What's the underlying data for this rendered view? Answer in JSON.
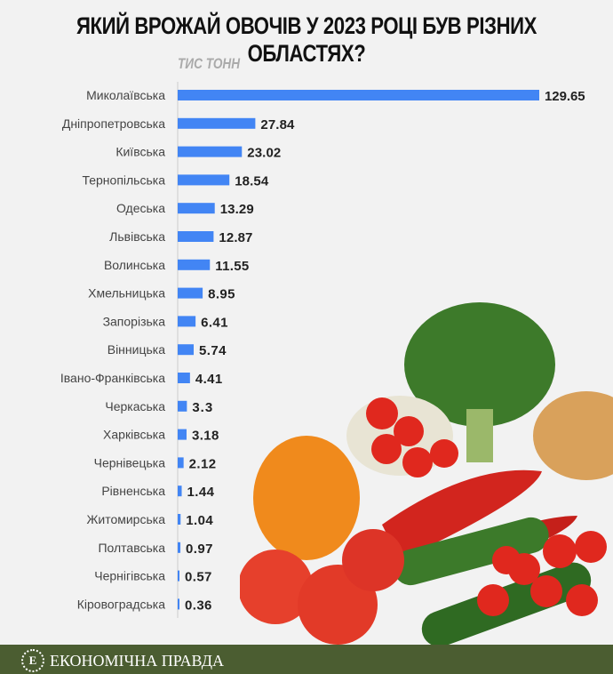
{
  "chart_data": {
    "type": "bar",
    "orientation": "horizontal",
    "title": "ЯКИЙ ВРОЖАЙ ОВОЧІВ У 2023 РОЦІ БУВ РІЗНИХ ОБЛАСТЯХ?",
    "unit": "ТИС ТОНН",
    "categories": [
      "Миколаївська",
      "Дніпропетровська",
      "Київська",
      "Тернопільська",
      "Одеська",
      "Львівська",
      "Волинська",
      "Хмельницька",
      "Запорізька",
      "Вінницька",
      "Івано-Франківська",
      "Черкаська",
      "Харківська",
      "Чернівецька",
      "Рівненська",
      "Житомирська",
      "Полтавська",
      "Чернігівська",
      "Кіровоградська"
    ],
    "values": [
      129.65,
      27.84,
      23.02,
      18.54,
      13.29,
      12.87,
      11.55,
      8.95,
      6.41,
      5.74,
      4.41,
      3.3,
      3.18,
      2.12,
      1.44,
      1.04,
      0.97,
      0.57,
      0.36
    ],
    "bar_color": "#4285f4"
  },
  "footer": {
    "brand": "ЕКОНОМІЧНА ПРАВДА",
    "logo_letter": "Е"
  }
}
